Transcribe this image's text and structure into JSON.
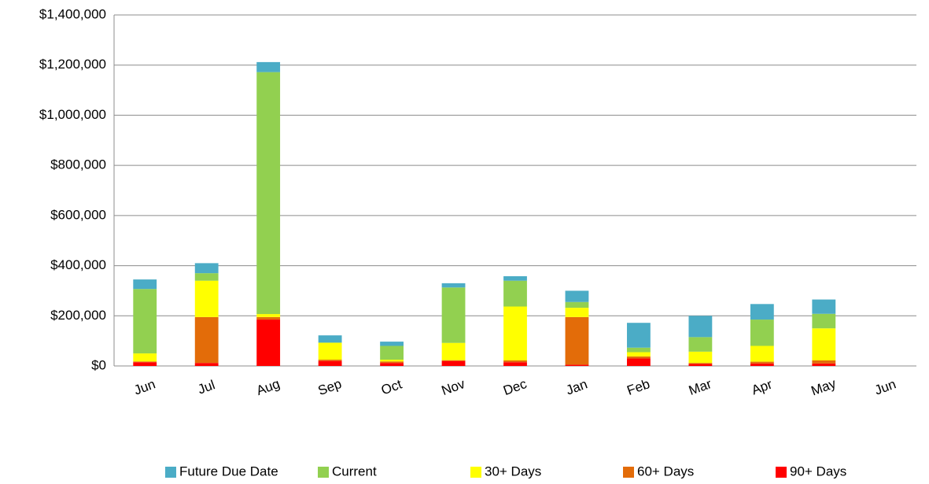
{
  "chart_data": {
    "type": "stacked_bar",
    "categories": [
      "Jun",
      "Jul",
      "Aug",
      "Sep",
      "Oct",
      "Nov",
      "Dec",
      "Jan",
      "Feb",
      "Mar",
      "Apr",
      "May",
      "Jun"
    ],
    "series": [
      {
        "name": "Future Due Date",
        "color": "#4bacc6",
        "values": [
          38000,
          40000,
          40000,
          28000,
          17000,
          17000,
          18000,
          45000,
          99000,
          85000,
          62000,
          57000,
          null
        ]
      },
      {
        "name": "Current",
        "color": "#92d050",
        "values": [
          257000,
          30000,
          965000,
          2000,
          55000,
          221000,
          103000,
          23000,
          18000,
          58000,
          105000,
          58000,
          null
        ]
      },
      {
        "name": "30+ Days",
        "color": "#ffff00",
        "values": [
          32000,
          145000,
          12000,
          67000,
          7000,
          69000,
          215000,
          37000,
          17000,
          45000,
          63000,
          128000,
          null
        ]
      },
      {
        "name": "60+ Days",
        "color": "#e36c09",
        "values": [
          3000,
          183000,
          10000,
          5000,
          6000,
          3000,
          7000,
          190000,
          8000,
          4000,
          7000,
          12000,
          null
        ]
      },
      {
        "name": "90+ Days",
        "color": "#ff0000",
        "values": [
          15000,
          12000,
          185000,
          20000,
          12000,
          20000,
          15000,
          5000,
          30000,
          8000,
          10000,
          10000,
          null
        ]
      }
    ],
    "ylim": [
      0,
      1400000
    ],
    "yticks": [
      {
        "value": 0,
        "label": "$0"
      },
      {
        "value": 200000,
        "label": "$200,000"
      },
      {
        "value": 400000,
        "label": "$400,000"
      },
      {
        "value": 600000,
        "label": "$600,000"
      },
      {
        "value": 800000,
        "label": "$800,000"
      },
      {
        "value": 1000000,
        "label": "$1,000,000"
      },
      {
        "value": 1200000,
        "label": "$1,200,000"
      },
      {
        "value": 1400000,
        "label": "$1,400,000"
      }
    ],
    "grid": true,
    "legend": "bottom"
  }
}
